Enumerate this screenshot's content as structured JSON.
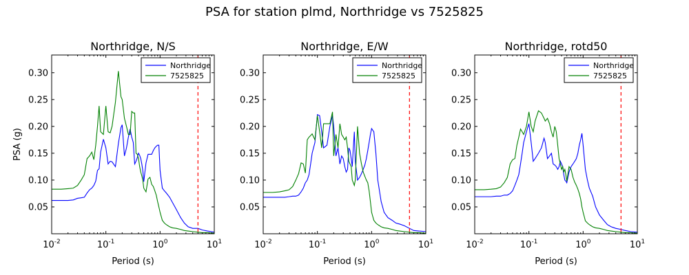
{
  "figure": {
    "title": "PSA for station plmd, Northridge vs 7525825"
  },
  "chart_data": [
    {
      "type": "line",
      "title": "Northridge, N/S",
      "xlabel": "Period (s)",
      "ylabel": "PSA (g)",
      "xscale": "log",
      "xlim": [
        0.01,
        10
      ],
      "ylim": [
        0,
        0.333
      ],
      "x_ticks": [
        {
          "value": 0.01,
          "base": "10",
          "exp": "-2"
        },
        {
          "value": 0.1,
          "base": "10",
          "exp": "-1"
        },
        {
          "value": 1,
          "base": "10",
          "exp": "0"
        },
        {
          "value": 10,
          "base": "10",
          "exp": "1"
        }
      ],
      "y_ticks": [
        {
          "value": 0.05,
          "label": "0.05"
        },
        {
          "value": 0.1,
          "label": "0.10"
        },
        {
          "value": 0.15,
          "label": "0.15"
        },
        {
          "value": 0.2,
          "label": "0.20"
        },
        {
          "value": 0.25,
          "label": "0.25"
        },
        {
          "value": 0.3,
          "label": "0.30"
        }
      ],
      "grid": false,
      "legend": "top-right",
      "vline": {
        "x": 5,
        "color": "#ff0000",
        "style": "dashed"
      },
      "series": [
        {
          "name": "Northridge",
          "color": "#0000ff",
          "x": [
            0.01,
            0.015,
            0.02,
            0.025,
            0.03,
            0.035,
            0.04,
            0.045,
            0.05,
            0.055,
            0.06,
            0.065,
            0.07,
            0.075,
            0.08,
            0.09,
            0.1,
            0.11,
            0.12,
            0.13,
            0.15,
            0.17,
            0.19,
            0.2,
            0.22,
            0.24,
            0.26,
            0.28,
            0.3,
            0.32,
            0.34,
            0.36,
            0.38,
            0.4,
            0.42,
            0.44,
            0.46,
            0.48,
            0.5,
            0.55,
            0.6,
            0.65,
            0.7,
            0.75,
            0.8,
            0.85,
            0.9,
            0.95,
            1.0,
            1.1,
            1.2,
            1.3,
            1.5,
            1.7,
            2.0,
            2.4,
            2.8,
            3.3,
            4.0,
            5.0,
            6.0,
            7.5,
            10.0
          ],
          "y": [
            0.062,
            0.062,
            0.062,
            0.063,
            0.066,
            0.067,
            0.068,
            0.076,
            0.082,
            0.085,
            0.09,
            0.098,
            0.118,
            0.121,
            0.152,
            0.176,
            0.16,
            0.13,
            0.135,
            0.134,
            0.125,
            0.168,
            0.198,
            0.203,
            0.145,
            0.16,
            0.18,
            0.195,
            0.18,
            0.17,
            0.13,
            0.135,
            0.142,
            0.15,
            0.146,
            0.14,
            0.13,
            0.118,
            0.097,
            0.132,
            0.148,
            0.148,
            0.148,
            0.155,
            0.16,
            0.163,
            0.165,
            0.165,
            0.118,
            0.085,
            0.08,
            0.076,
            0.068,
            0.058,
            0.045,
            0.03,
            0.02,
            0.013,
            0.01,
            0.01,
            0.007,
            0.005,
            0.003
          ]
        },
        {
          "name": "7525825",
          "color": "#008000",
          "x": [
            0.01,
            0.015,
            0.02,
            0.025,
            0.03,
            0.035,
            0.04,
            0.045,
            0.05,
            0.055,
            0.06,
            0.065,
            0.07,
            0.075,
            0.08,
            0.09,
            0.1,
            0.11,
            0.12,
            0.13,
            0.15,
            0.17,
            0.19,
            0.2,
            0.22,
            0.24,
            0.26,
            0.28,
            0.3,
            0.32,
            0.34,
            0.36,
            0.38,
            0.4,
            0.42,
            0.44,
            0.46,
            0.48,
            0.5,
            0.55,
            0.6,
            0.65,
            0.7,
            0.75,
            0.8,
            0.85,
            0.9,
            0.95,
            1.0,
            1.1,
            1.2,
            1.3,
            1.5,
            1.7,
            2.0,
            2.4,
            2.8,
            3.3,
            4.0,
            5.0,
            6.0,
            7.5,
            10.0
          ],
          "y": [
            0.083,
            0.083,
            0.084,
            0.085,
            0.09,
            0.1,
            0.11,
            0.14,
            0.145,
            0.152,
            0.138,
            0.165,
            0.2,
            0.238,
            0.19,
            0.185,
            0.238,
            0.19,
            0.188,
            0.2,
            0.245,
            0.303,
            0.255,
            0.25,
            0.215,
            0.2,
            0.185,
            0.185,
            0.228,
            0.225,
            0.225,
            0.15,
            0.148,
            0.14,
            0.125,
            0.115,
            0.108,
            0.1,
            0.085,
            0.078,
            0.102,
            0.105,
            0.092,
            0.088,
            0.08,
            0.072,
            0.06,
            0.05,
            0.04,
            0.025,
            0.02,
            0.017,
            0.013,
            0.011,
            0.01,
            0.008,
            0.006,
            0.005,
            0.004,
            0.003,
            0.002,
            0.002,
            0.001
          ]
        }
      ]
    },
    {
      "type": "line",
      "title": "Northridge, E/W",
      "xlabel": "Period (s)",
      "ylabel": "",
      "xscale": "log",
      "xlim": [
        0.01,
        10
      ],
      "ylim": [
        0,
        0.333
      ],
      "x_ticks": [
        {
          "value": 0.01,
          "base": "10",
          "exp": "-2"
        },
        {
          "value": 0.1,
          "base": "10",
          "exp": "-1"
        },
        {
          "value": 1,
          "base": "10",
          "exp": "0"
        },
        {
          "value": 10,
          "base": "10",
          "exp": "1"
        }
      ],
      "y_ticks": [
        {
          "value": 0.05,
          "label": "0.05"
        },
        {
          "value": 0.1,
          "label": "0.10"
        },
        {
          "value": 0.15,
          "label": "0.15"
        },
        {
          "value": 0.2,
          "label": "0.20"
        },
        {
          "value": 0.25,
          "label": "0.25"
        },
        {
          "value": 0.3,
          "label": "0.30"
        }
      ],
      "grid": false,
      "legend": "top-right",
      "vline": {
        "x": 5,
        "color": "#ff0000",
        "style": "dashed"
      },
      "series": [
        {
          "name": "Northridge",
          "color": "#0000ff",
          "x": [
            0.01,
            0.015,
            0.02,
            0.025,
            0.03,
            0.035,
            0.04,
            0.045,
            0.05,
            0.055,
            0.06,
            0.065,
            0.07,
            0.075,
            0.08,
            0.09,
            0.1,
            0.11,
            0.12,
            0.13,
            0.15,
            0.17,
            0.19,
            0.2,
            0.22,
            0.24,
            0.26,
            0.28,
            0.3,
            0.32,
            0.34,
            0.36,
            0.38,
            0.4,
            0.42,
            0.44,
            0.46,
            0.48,
            0.5,
            0.55,
            0.6,
            0.65,
            0.7,
            0.75,
            0.8,
            0.85,
            0.9,
            0.95,
            1.0,
            1.1,
            1.2,
            1.3,
            1.5,
            1.7,
            2.0,
            2.4,
            2.8,
            3.3,
            4.0,
            5.0,
            6.0,
            7.5,
            10.0
          ],
          "y": [
            0.068,
            0.068,
            0.068,
            0.068,
            0.069,
            0.07,
            0.07,
            0.072,
            0.078,
            0.085,
            0.095,
            0.1,
            0.11,
            0.13,
            0.15,
            0.17,
            0.222,
            0.22,
            0.19,
            0.16,
            0.165,
            0.2,
            0.22,
            0.2,
            0.145,
            0.16,
            0.13,
            0.145,
            0.14,
            0.125,
            0.115,
            0.12,
            0.16,
            0.155,
            0.14,
            0.125,
            0.16,
            0.19,
            0.135,
            0.1,
            0.105,
            0.112,
            0.12,
            0.128,
            0.14,
            0.155,
            0.17,
            0.185,
            0.196,
            0.19,
            0.15,
            0.1,
            0.06,
            0.04,
            0.03,
            0.025,
            0.02,
            0.018,
            0.015,
            0.01,
            0.006,
            0.005,
            0.004
          ]
        },
        {
          "name": "7525825",
          "color": "#008000",
          "x": [
            0.01,
            0.015,
            0.02,
            0.025,
            0.03,
            0.035,
            0.04,
            0.045,
            0.05,
            0.055,
            0.06,
            0.065,
            0.07,
            0.075,
            0.08,
            0.09,
            0.1,
            0.11,
            0.12,
            0.13,
            0.15,
            0.17,
            0.19,
            0.2,
            0.22,
            0.24,
            0.26,
            0.28,
            0.3,
            0.32,
            0.34,
            0.36,
            0.38,
            0.4,
            0.42,
            0.44,
            0.46,
            0.48,
            0.5,
            0.55,
            0.6,
            0.65,
            0.7,
            0.75,
            0.8,
            0.85,
            0.9,
            0.95,
            1.0,
            1.1,
            1.2,
            1.3,
            1.5,
            1.7,
            2.0,
            2.4,
            2.8,
            3.3,
            4.0,
            5.0,
            6.0,
            7.5,
            10.0
          ],
          "y": [
            0.077,
            0.077,
            0.078,
            0.08,
            0.082,
            0.088,
            0.1,
            0.112,
            0.132,
            0.13,
            0.113,
            0.175,
            0.18,
            0.183,
            0.186,
            0.175,
            0.22,
            0.19,
            0.16,
            0.205,
            0.205,
            0.205,
            0.227,
            0.145,
            0.185,
            0.16,
            0.205,
            0.185,
            0.18,
            0.175,
            0.18,
            0.16,
            0.135,
            0.13,
            0.125,
            0.1,
            0.095,
            0.09,
            0.1,
            0.2,
            0.15,
            0.13,
            0.115,
            0.107,
            0.1,
            0.095,
            0.08,
            0.06,
            0.04,
            0.025,
            0.02,
            0.017,
            0.013,
            0.011,
            0.01,
            0.008,
            0.006,
            0.005,
            0.004,
            0.003,
            0.002,
            0.002,
            0.001
          ]
        }
      ]
    },
    {
      "type": "line",
      "title": "Northridge, rotd50",
      "xlabel": "Period (s)",
      "ylabel": "",
      "xscale": "log",
      "xlim": [
        0.01,
        10
      ],
      "ylim": [
        0,
        0.333
      ],
      "x_ticks": [
        {
          "value": 0.01,
          "base": "10",
          "exp": "-2"
        },
        {
          "value": 0.1,
          "base": "10",
          "exp": "-1"
        },
        {
          "value": 1,
          "base": "10",
          "exp": "0"
        },
        {
          "value": 10,
          "base": "10",
          "exp": "1"
        }
      ],
      "y_ticks": [
        {
          "value": 0.05,
          "label": "0.05"
        },
        {
          "value": 0.1,
          "label": "0.10"
        },
        {
          "value": 0.15,
          "label": "0.15"
        },
        {
          "value": 0.2,
          "label": "0.20"
        },
        {
          "value": 0.25,
          "label": "0.25"
        },
        {
          "value": 0.3,
          "label": "0.30"
        }
      ],
      "grid": false,
      "legend": "top-right",
      "vline": {
        "x": 5,
        "color": "#ff0000",
        "style": "dashed"
      },
      "series": [
        {
          "name": "Northridge",
          "color": "#0000ff",
          "x": [
            0.01,
            0.015,
            0.02,
            0.025,
            0.03,
            0.035,
            0.04,
            0.045,
            0.05,
            0.055,
            0.06,
            0.065,
            0.07,
            0.075,
            0.08,
            0.09,
            0.1,
            0.11,
            0.12,
            0.13,
            0.15,
            0.17,
            0.19,
            0.2,
            0.22,
            0.24,
            0.26,
            0.28,
            0.3,
            0.32,
            0.34,
            0.36,
            0.38,
            0.4,
            0.42,
            0.44,
            0.46,
            0.48,
            0.5,
            0.55,
            0.6,
            0.65,
            0.7,
            0.75,
            0.8,
            0.85,
            0.9,
            0.95,
            1.0,
            1.1,
            1.2,
            1.3,
            1.5,
            1.7,
            2.0,
            2.4,
            2.8,
            3.3,
            4.0,
            5.0,
            6.0,
            7.5,
            10.0
          ],
          "y": [
            0.069,
            0.069,
            0.069,
            0.07,
            0.07,
            0.072,
            0.072,
            0.075,
            0.08,
            0.09,
            0.1,
            0.11,
            0.13,
            0.15,
            0.17,
            0.19,
            0.205,
            0.17,
            0.135,
            0.14,
            0.15,
            0.16,
            0.178,
            0.17,
            0.14,
            0.145,
            0.15,
            0.13,
            0.128,
            0.125,
            0.12,
            0.125,
            0.135,
            0.13,
            0.125,
            0.11,
            0.1,
            0.098,
            0.095,
            0.115,
            0.125,
            0.13,
            0.135,
            0.14,
            0.15,
            0.165,
            0.175,
            0.187,
            0.165,
            0.12,
            0.1,
            0.085,
            0.07,
            0.05,
            0.035,
            0.025,
            0.017,
            0.013,
            0.01,
            0.008,
            0.006,
            0.004,
            0.003
          ]
        },
        {
          "name": "7525825",
          "color": "#008000",
          "x": [
            0.01,
            0.015,
            0.02,
            0.025,
            0.03,
            0.035,
            0.04,
            0.045,
            0.05,
            0.055,
            0.06,
            0.065,
            0.07,
            0.075,
            0.08,
            0.09,
            0.1,
            0.11,
            0.12,
            0.13,
            0.15,
            0.17,
            0.19,
            0.2,
            0.22,
            0.24,
            0.26,
            0.28,
            0.3,
            0.32,
            0.34,
            0.36,
            0.38,
            0.4,
            0.42,
            0.44,
            0.46,
            0.48,
            0.5,
            0.55,
            0.6,
            0.65,
            0.7,
            0.75,
            0.8,
            0.85,
            0.9,
            0.95,
            1.0,
            1.1,
            1.2,
            1.3,
            1.5,
            1.7,
            2.0,
            2.4,
            2.8,
            3.3,
            4.0,
            5.0,
            6.0,
            7.5,
            10.0
          ],
          "y": [
            0.082,
            0.082,
            0.083,
            0.084,
            0.087,
            0.095,
            0.105,
            0.13,
            0.138,
            0.14,
            0.165,
            0.18,
            0.195,
            0.19,
            0.185,
            0.2,
            0.227,
            0.2,
            0.19,
            0.21,
            0.229,
            0.225,
            0.215,
            0.21,
            0.215,
            0.205,
            0.19,
            0.18,
            0.2,
            0.19,
            0.165,
            0.14,
            0.13,
            0.12,
            0.125,
            0.115,
            0.12,
            0.11,
            0.098,
            0.125,
            0.12,
            0.105,
            0.096,
            0.09,
            0.083,
            0.075,
            0.065,
            0.05,
            0.04,
            0.024,
            0.02,
            0.017,
            0.013,
            0.011,
            0.01,
            0.008,
            0.006,
            0.005,
            0.004,
            0.003,
            0.002,
            0.002,
            0.001
          ]
        }
      ]
    }
  ]
}
